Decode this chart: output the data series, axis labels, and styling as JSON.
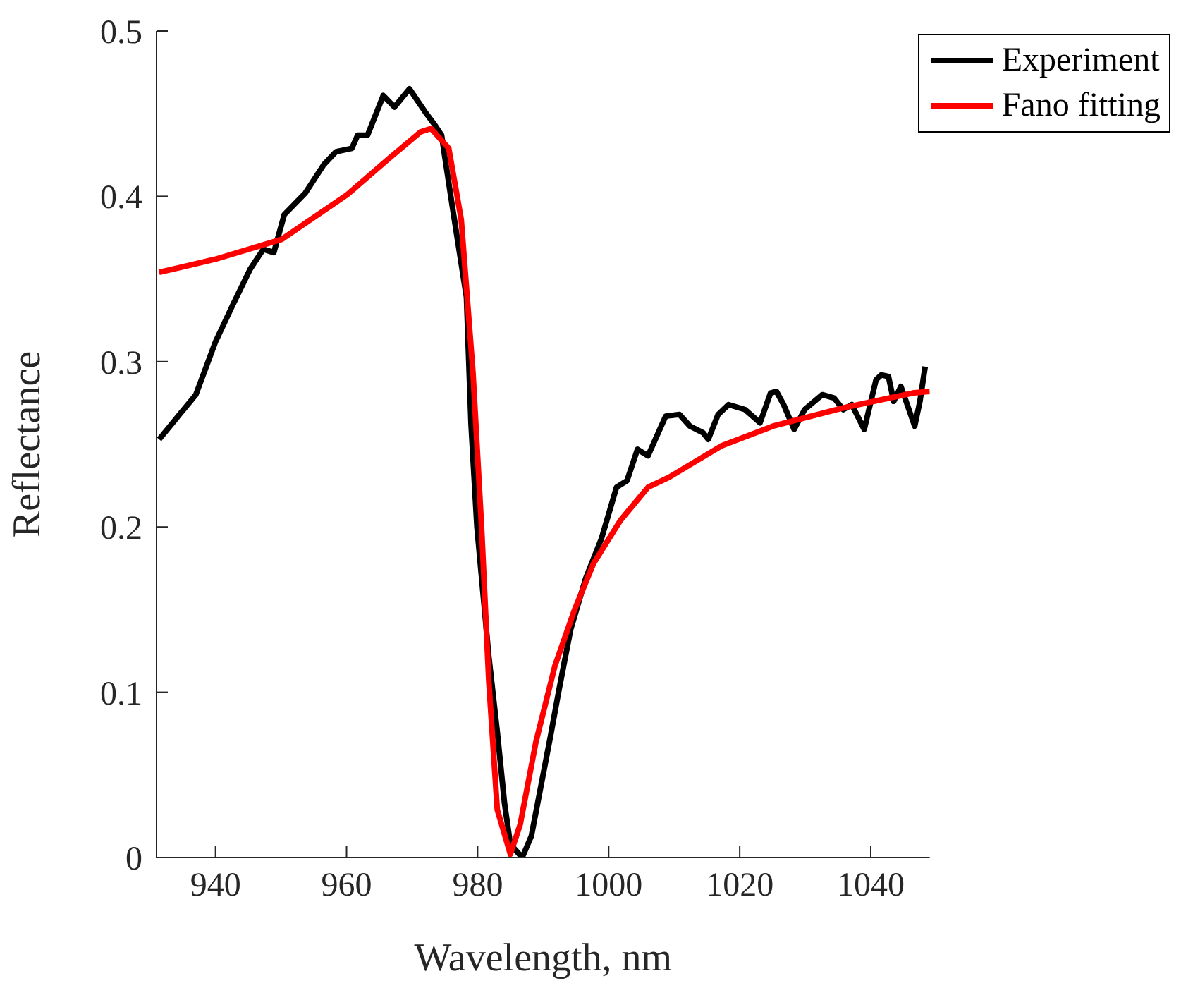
{
  "chart_data": {
    "type": "line",
    "xlabel": "Wavelength, nm",
    "ylabel": "Reflectance",
    "xlim": [
      931,
      1049
    ],
    "ylim": [
      0,
      0.5
    ],
    "xticks": [
      940,
      960,
      980,
      1000,
      1020,
      1040
    ],
    "yticks": [
      0,
      0.1,
      0.2,
      0.3,
      0.4,
      0.5
    ],
    "grid": false,
    "legend": "top right",
    "marker": "none",
    "line_style": "solid",
    "series": [
      {
        "name": "Experiment",
        "color": "#000000",
        "x": [
          931.4,
          937.0,
          940,
          942.6,
          945.3,
          947.3,
          948.9,
          950.5,
          953.7,
          956.5,
          958.4,
          960.8,
          961.7,
          963.2,
          965.6,
          967.3,
          969.6,
          972.0,
          973.5,
          974.5,
          976.1,
          978.3,
          979.0,
          979.9,
          981.7,
          983.0,
          984.1,
          985.0,
          986.8,
          988.2,
          989.7,
          991.1,
          992.4,
          994.2,
          996.5,
          998.9,
          1001.2,
          1002.8,
          1004.4,
          1006.0,
          1008.7,
          1010.8,
          1012.4,
          1014.4,
          1015.2,
          1016.7,
          1018.3,
          1020.8,
          1023.1,
          1024.7,
          1025.6,
          1026.7,
          1028.3,
          1029.9,
          1032.6,
          1034.4,
          1035.8,
          1037.1,
          1039.0,
          1040.8,
          1041.6,
          1042.7,
          1043.5,
          1044.6,
          1046.7,
          1047.5,
          1048.3
        ],
        "values": [
          0.253,
          0.28,
          0.312,
          0.334,
          0.356,
          0.368,
          0.366,
          0.389,
          0.402,
          0.419,
          0.427,
          0.429,
          0.437,
          0.437,
          0.461,
          0.454,
          0.465,
          0.451,
          0.443,
          0.437,
          0.395,
          0.339,
          0.262,
          0.2,
          0.122,
          0.076,
          0.033,
          0.008,
          0.0,
          0.013,
          0.044,
          0.073,
          0.101,
          0.138,
          0.169,
          0.193,
          0.224,
          0.228,
          0.247,
          0.243,
          0.267,
          0.268,
          0.261,
          0.257,
          0.253,
          0.268,
          0.274,
          0.271,
          0.263,
          0.281,
          0.282,
          0.274,
          0.259,
          0.271,
          0.28,
          0.278,
          0.271,
          0.274,
          0.259,
          0.289,
          0.292,
          0.291,
          0.276,
          0.285,
          0.261,
          0.276,
          0.297
        ]
      },
      {
        "name": "Fano fitting",
        "color": "#ff0000",
        "x": [
          931.4,
          940,
          950.1,
          960.1,
          966.5,
          971.3,
          972.9,
          975.6,
          977.5,
          979.3,
          980.6,
          981.7,
          983.0,
          985.0,
          986.5,
          988.9,
          991.8,
          994.8,
          997.7,
          1001.8,
          1003.9,
          1006.0,
          1009.2,
          1017.2,
          1025.1,
          1035.8,
          1046.4,
          1049
        ],
        "values": [
          0.354,
          0.362,
          0.374,
          0.401,
          0.423,
          0.439,
          0.441,
          0.429,
          0.386,
          0.293,
          0.2,
          0.107,
          0.029,
          0.002,
          0.02,
          0.07,
          0.116,
          0.15,
          0.178,
          0.204,
          0.214,
          0.224,
          0.23,
          0.249,
          0.261,
          0.272,
          0.281,
          0.282
        ]
      }
    ]
  }
}
